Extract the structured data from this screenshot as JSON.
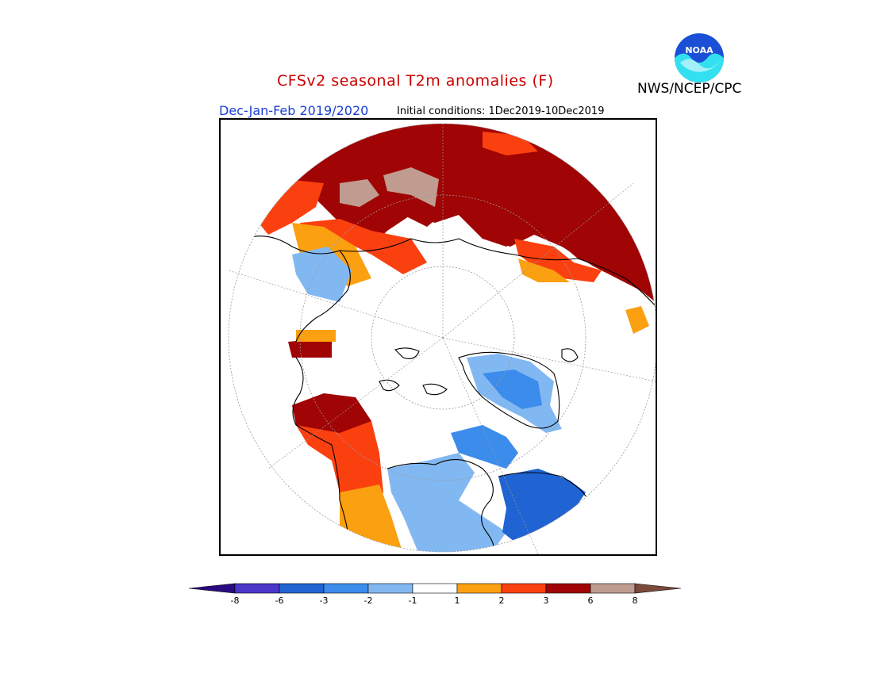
{
  "title": "CFSv2 seasonal T2m anomalies (F)",
  "agency": "NWS/NCEP/CPC",
  "logo_text": "NOAA",
  "subtitle": "Dec-Jan-Feb 2019/2020",
  "initial_conditions": "Initial conditions: 1Dec2019-10Dec2019",
  "colors": {
    "title": "#cc0000",
    "subtitle": "#1a3fd6",
    "ocean": "#ffffff",
    "coast": "#000000"
  },
  "legend": {
    "bins": [
      {
        "range": "< -8",
        "color": "#2a0a80"
      },
      {
        "range": "-8 to -6",
        "color": "#4a36c8"
      },
      {
        "range": "-6 to -3",
        "color": "#1f64d2"
      },
      {
        "range": "-3 to -2",
        "color": "#3c8cec"
      },
      {
        "range": "-2 to -1",
        "color": "#82b8f2"
      },
      {
        "range": "-1 to 1",
        "color": "#ffffff"
      },
      {
        "range": "1 to 2",
        "color": "#fba010"
      },
      {
        "range": "2 to 3",
        "color": "#fb4010"
      },
      {
        "range": "3 to 6",
        "color": "#a00404"
      },
      {
        "range": "6 to 8",
        "color": "#c09c90"
      },
      {
        "range": "> 8",
        "color": "#7a4a3a"
      }
    ],
    "tick_labels": [
      "-8",
      "-6",
      "-3",
      "-2",
      "-1",
      "1",
      "2",
      "3",
      "6",
      "8"
    ]
  }
}
